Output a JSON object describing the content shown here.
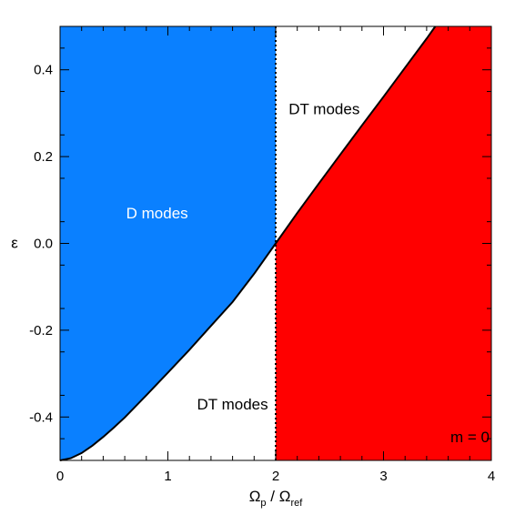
{
  "chart_data": {
    "type": "area",
    "xlabel": {
      "main": "Ω",
      "sub1": "p",
      "mid": " / Ω",
      "sub2": "ref"
    },
    "ylabel": "ε",
    "xlim": [
      0,
      4
    ],
    "ylim": [
      -0.5,
      0.5
    ],
    "x_ticks": [
      0,
      1,
      2,
      3,
      4
    ],
    "x_tick_labels": [
      "0",
      "1",
      "2",
      "3",
      "4"
    ],
    "y_ticks": [
      -0.4,
      -0.2,
      0.0,
      0.2,
      0.4
    ],
    "y_tick_labels": [
      "-0.4",
      "-0.2",
      "0.0",
      "0.2",
      "0.4"
    ],
    "colors": {
      "d_region": "#0a80ff",
      "red_region": "#ff0000",
      "boundary": "#000000",
      "white_region": "#ffffff"
    },
    "boundary_curve": {
      "x": [
        0,
        0.1,
        0.2,
        0.3,
        0.4,
        0.5,
        0.6,
        0.8,
        1.0,
        1.2,
        1.4,
        1.6,
        1.8,
        2.0,
        2.2,
        2.4,
        2.6,
        2.8,
        3.0,
        3.2,
        3.4,
        3.48
      ],
      "y": [
        -0.5,
        -0.495,
        -0.483,
        -0.466,
        -0.446,
        -0.424,
        -0.401,
        -0.35,
        -0.298,
        -0.245,
        -0.19,
        -0.135,
        -0.07,
        0.0,
        0.07,
        0.138,
        0.205,
        0.272,
        0.338,
        0.405,
        0.472,
        0.5
      ]
    },
    "vertical_line_x": 2.0,
    "regions": [
      {
        "label": "D modes",
        "x": 0.9,
        "y": 0.07,
        "color": "#ffffff",
        "anchor": "middle"
      },
      {
        "label": "DT modes",
        "x": 2.12,
        "y": 0.31,
        "color": "#000000",
        "anchor": "start"
      },
      {
        "label": "DT modes",
        "x": 1.6,
        "y": -0.37,
        "color": "#000000",
        "anchor": "middle"
      },
      {
        "label": "m = 0",
        "x": 3.62,
        "y": -0.445,
        "color": "#000000",
        "anchor": "start"
      }
    ]
  }
}
